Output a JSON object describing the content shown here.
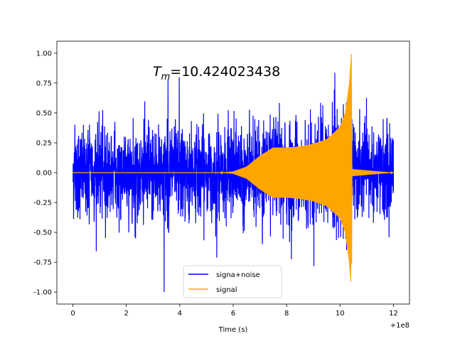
{
  "chart_data": {
    "type": "line",
    "title": "",
    "annotation_prefix": "T",
    "annotation_subscript": "m",
    "annotation_value": "=10.424023438",
    "xlabel": "Time (s)",
    "ylabel": "",
    "x_offset_label": "+1e8",
    "xlim": [
      -0.6,
      12.6
    ],
    "ylim": [
      -1.1,
      1.1
    ],
    "xticks": [
      "0",
      "2",
      "4",
      "6",
      "8",
      "10",
      "12"
    ],
    "yticks": [
      "-1.00",
      "-0.75",
      "-0.50",
      "-0.25",
      "0.00",
      "0.25",
      "0.50",
      "0.75",
      "1.00"
    ],
    "series": [
      {
        "name": "signa+noise",
        "color": "#0000ff",
        "description_values": {
          "x_range": [
            0,
            12
          ],
          "typical_amplitude": 0.45,
          "max": 1.0,
          "min": -1.0
        }
      },
      {
        "name": "signal",
        "color": "#ffa500",
        "description_values": {
          "x_range": [
            0,
            12
          ],
          "envelope_points": [
            [
              0,
              0.0
            ],
            [
              5.5,
              0.0
            ],
            [
              6.0,
              0.01
            ],
            [
              6.5,
              0.05
            ],
            [
              7.0,
              0.14
            ],
            [
              7.5,
              0.21
            ],
            [
              8.0,
              0.21
            ],
            [
              8.5,
              0.22
            ],
            [
              9.0,
              0.24
            ],
            [
              9.5,
              0.28
            ],
            [
              10.0,
              0.38
            ],
            [
              10.2,
              0.5
            ],
            [
              10.35,
              0.75
            ],
            [
              10.424,
              1.0
            ],
            [
              10.45,
              0.03
            ],
            [
              12.0,
              0.0
            ]
          ],
          "peak": 1.0,
          "trough": -0.76,
          "merger_time": 10.424023438
        }
      }
    ],
    "legend": {
      "placement": "bottom-center",
      "entries": [
        "signa+noise",
        "signal"
      ]
    },
    "grid": false
  }
}
